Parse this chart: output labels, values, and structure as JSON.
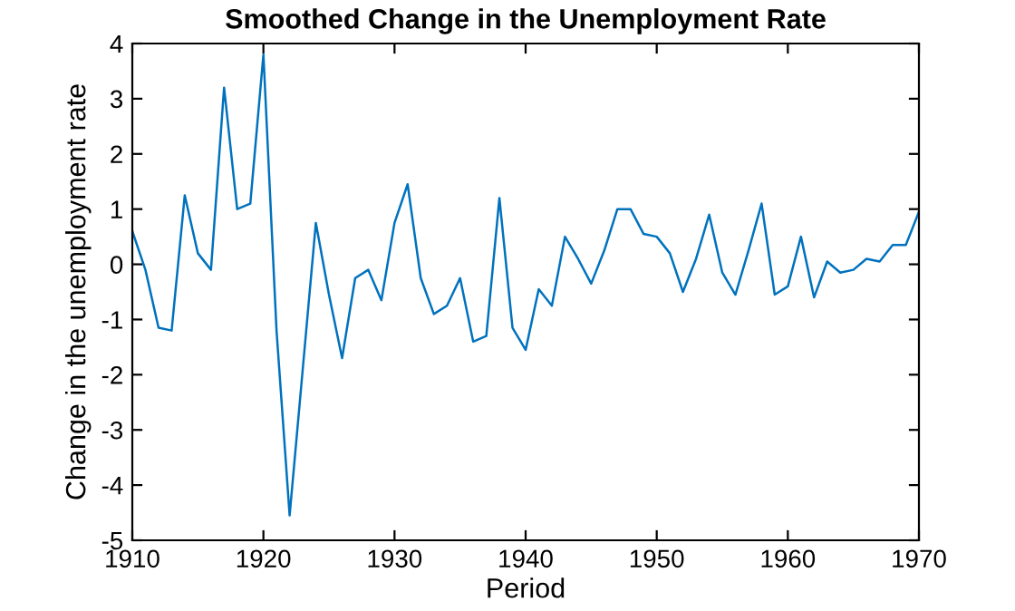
{
  "chart_data": {
    "type": "line",
    "title": "Smoothed Change in the Unemployment Rate",
    "xlabel": "Period",
    "ylabel": "Change in the unemployment rate",
    "x": [
      1910,
      1911,
      1912,
      1913,
      1914,
      1915,
      1916,
      1917,
      1918,
      1919,
      1920,
      1921,
      1922,
      1923,
      1924,
      1925,
      1926,
      1927,
      1928,
      1929,
      1930,
      1931,
      1932,
      1933,
      1934,
      1935,
      1936,
      1937,
      1938,
      1939,
      1940,
      1941,
      1942,
      1943,
      1944,
      1945,
      1946,
      1947,
      1948,
      1949,
      1950,
      1951,
      1952,
      1953,
      1954,
      1955,
      1956,
      1957,
      1958,
      1959,
      1960,
      1961,
      1962,
      1963,
      1964,
      1965,
      1966,
      1967,
      1968,
      1969,
      1970
    ],
    "series": [
      {
        "color": "#0072bd",
        "values": [
          0.6,
          -0.1,
          -1.15,
          -1.2,
          1.25,
          0.2,
          -0.1,
          3.2,
          1.0,
          1.1,
          3.8,
          -1.2,
          -4.55,
          -1.9,
          0.75,
          -0.55,
          -1.7,
          -0.25,
          -0.1,
          -0.65,
          0.75,
          1.45,
          -0.25,
          -0.9,
          -0.75,
          -0.25,
          -1.4,
          -1.3,
          1.2,
          -1.15,
          -1.55,
          -0.45,
          -0.75,
          0.5,
          0.1,
          -0.35,
          0.25,
          1.0,
          1.0,
          0.55,
          0.5,
          0.2,
          -0.5,
          0.1,
          0.9,
          -0.15,
          -0.55,
          0.25,
          1.1,
          -0.55,
          -0.4,
          0.5,
          -0.6,
          0.05,
          -0.15,
          -0.1,
          0.1,
          0.05,
          0.35,
          0.35,
          0.95
        ]
      }
    ],
    "xlim": [
      1910,
      1970
    ],
    "xticks": [
      1910,
      1920,
      1930,
      1940,
      1950,
      1960,
      1970
    ],
    "ylim": [
      -5,
      4
    ],
    "yticks": [
      -5,
      -4,
      -3,
      -2,
      -1,
      0,
      1,
      2,
      3,
      4
    ],
    "grid": false,
    "legend": false,
    "marker": "none",
    "line_style": "solid"
  }
}
